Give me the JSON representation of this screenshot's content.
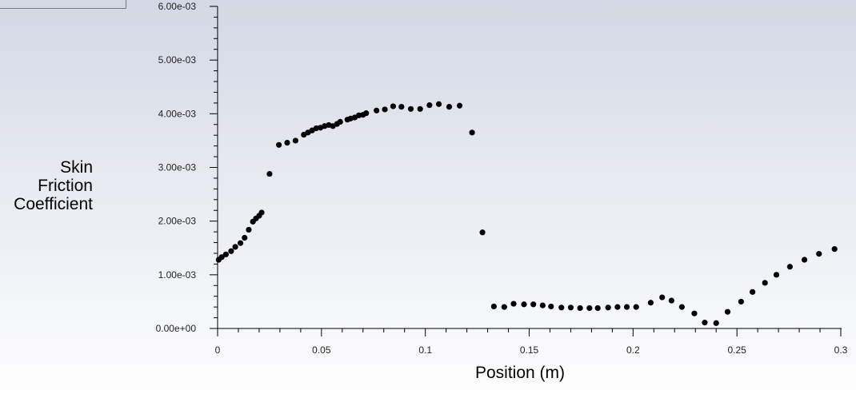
{
  "chart_data": {
    "type": "scatter",
    "xlabel": "Position (m)",
    "ylabel_lines": [
      "Skin",
      "Friction",
      "Coefficient"
    ],
    "xlim": [
      0,
      0.3
    ],
    "ylim": [
      0,
      0.006
    ],
    "x_ticks": [
      0,
      0.05,
      0.1,
      0.15,
      0.2,
      0.25,
      0.3
    ],
    "x_tick_labels": [
      "0",
      "0.05",
      "0.1",
      "0.15",
      "0.2",
      "0.25",
      "0.3"
    ],
    "y_ticks": [
      0,
      0.001,
      0.002,
      0.003,
      0.004,
      0.005,
      0.006
    ],
    "y_tick_labels": [
      "0.00e+00",
      "1.00e-03",
      "2.00e-03",
      "3.00e-03",
      "4.00e-03",
      "5.00e-03",
      "6.00e-03"
    ],
    "grid": false,
    "marker_color": "#000000",
    "series": [
      {
        "points": [
          [
            0.0005,
            0.00128
          ],
          [
            0.002,
            0.00133
          ],
          [
            0.004,
            0.00138
          ],
          [
            0.0065,
            0.00144
          ],
          [
            0.0085,
            0.00152
          ],
          [
            0.011,
            0.00159
          ],
          [
            0.013,
            0.00169
          ],
          [
            0.015,
            0.00184
          ],
          [
            0.017,
            0.00199
          ],
          [
            0.0185,
            0.00205
          ],
          [
            0.02,
            0.0021
          ],
          [
            0.0212,
            0.00216
          ],
          [
            0.025,
            0.00288
          ],
          [
            0.0295,
            0.00342
          ],
          [
            0.0335,
            0.00346
          ],
          [
            0.0375,
            0.0035
          ],
          [
            0.0415,
            0.00361
          ],
          [
            0.0435,
            0.00365
          ],
          [
            0.0455,
            0.00369
          ],
          [
            0.0475,
            0.00373
          ],
          [
            0.0495,
            0.00374
          ],
          [
            0.0515,
            0.00377
          ],
          [
            0.0535,
            0.00379
          ],
          [
            0.0555,
            0.00377
          ],
          [
            0.0575,
            0.00381
          ],
          [
            0.059,
            0.00385
          ],
          [
            0.0625,
            0.00389
          ],
          [
            0.064,
            0.00391
          ],
          [
            0.066,
            0.00393
          ],
          [
            0.068,
            0.00397
          ],
          [
            0.07,
            0.00398
          ],
          [
            0.0715,
            0.00401
          ],
          [
            0.0765,
            0.00406
          ],
          [
            0.0805,
            0.00408
          ],
          [
            0.0845,
            0.00414
          ],
          [
            0.0885,
            0.00413
          ],
          [
            0.093,
            0.00409
          ],
          [
            0.0975,
            0.00409
          ],
          [
            0.102,
            0.00416
          ],
          [
            0.1065,
            0.00418
          ],
          [
            0.1115,
            0.00413
          ],
          [
            0.1165,
            0.00415
          ],
          [
            0.1225,
            0.00365
          ],
          [
            0.1275,
            0.00179
          ],
          [
            0.133,
            0.00041
          ],
          [
            0.138,
            0.0004
          ],
          [
            0.1425,
            0.00046
          ],
          [
            0.1475,
            0.00045
          ],
          [
            0.152,
            0.00045
          ],
          [
            0.1565,
            0.00043
          ],
          [
            0.1605,
            0.00041
          ],
          [
            0.1655,
            0.00039
          ],
          [
            0.17,
            0.00039
          ],
          [
            0.1745,
            0.00038
          ],
          [
            0.179,
            0.00038
          ],
          [
            0.183,
            0.00038
          ],
          [
            0.188,
            0.00039
          ],
          [
            0.1925,
            0.0004
          ],
          [
            0.197,
            0.0004
          ],
          [
            0.2015,
            0.0004
          ],
          [
            0.2085,
            0.00048
          ],
          [
            0.214,
            0.00058
          ],
          [
            0.2185,
            0.00052
          ],
          [
            0.2235,
            0.0004
          ],
          [
            0.2295,
            0.00028
          ],
          [
            0.2345,
            0.00011
          ],
          [
            0.24,
            0.0001
          ],
          [
            0.2455,
            0.00031
          ],
          [
            0.252,
            0.0005
          ],
          [
            0.2575,
            0.00068
          ],
          [
            0.2635,
            0.00085
          ],
          [
            0.269,
            0.001
          ],
          [
            0.2755,
            0.00115
          ],
          [
            0.2825,
            0.00128
          ],
          [
            0.2895,
            0.00139
          ],
          [
            0.297,
            0.00148
          ]
        ]
      }
    ]
  }
}
